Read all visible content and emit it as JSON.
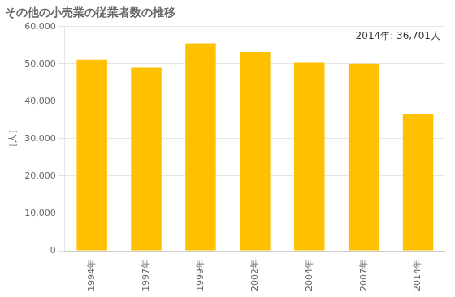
{
  "chart_data": {
    "type": "bar",
    "title": "その他の小売業の従業者数の推移",
    "ylabel": "［人］",
    "annotation": "2014年: 36,701人",
    "categories": [
      "1994年",
      "1997年",
      "1999年",
      "2002年",
      "2004年",
      "2007年",
      "2014年"
    ],
    "values": [
      51100,
      49000,
      55500,
      53200,
      50300,
      50000,
      36701
    ],
    "color": "#FFC000",
    "ylim": [
      0,
      60000
    ],
    "yticks": [
      0,
      {
        "value": 10000,
        "label": "10,000"
      },
      {
        "value": 20000,
        "label": "20,000"
      },
      {
        "value": 30000,
        "label": "30,000"
      },
      {
        "value": 40000,
        "label": "40,000"
      },
      {
        "value": 50000,
        "label": "50,000"
      },
      {
        "value": 60000,
        "label": "60,000"
      }
    ],
    "grid": true
  }
}
